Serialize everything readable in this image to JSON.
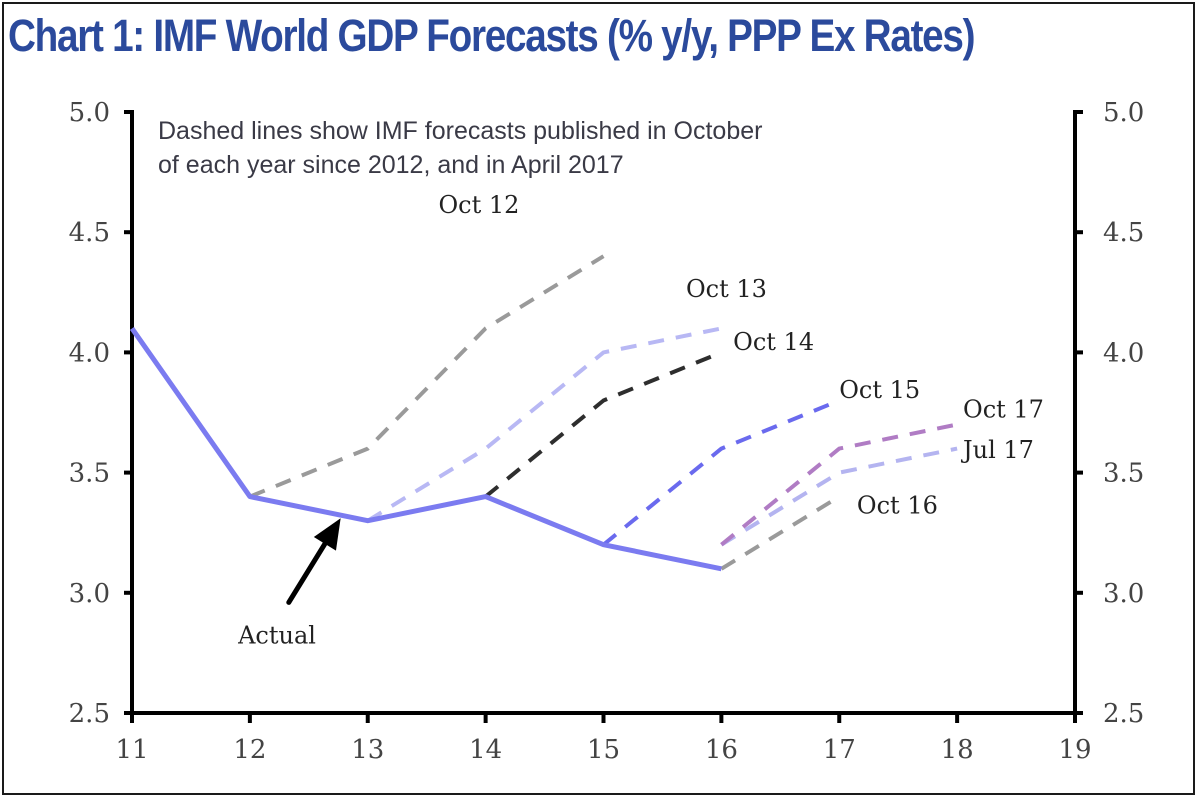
{
  "chart_data": {
    "type": "line",
    "title": "Chart 1: IMF World GDP Forecasts (% y/y, PPP Ex Rates)",
    "note_lines": [
      "Dashed lines show IMF forecasts published in October",
      "of each year since 2012, and in April 2017"
    ],
    "xlabel": "",
    "ylabel": "",
    "xlim": [
      11,
      19
    ],
    "ylim": [
      2.5,
      5.0
    ],
    "x_ticks": [
      "11",
      "12",
      "13",
      "14",
      "15",
      "16",
      "17",
      "18",
      "19"
    ],
    "y_ticks_left": [
      "2.5",
      "3.0",
      "3.5",
      "4.0",
      "4.5",
      "5.0"
    ],
    "y_ticks_right": [
      "2.5",
      "3.0",
      "3.5",
      "4.0",
      "4.5",
      "5.0"
    ],
    "grid": false,
    "series": [
      {
        "name": "Actual",
        "style": "solid",
        "color": "#7b7bf0",
        "x": [
          11,
          12,
          13,
          14,
          15,
          16
        ],
        "y": [
          4.1,
          3.4,
          3.3,
          3.4,
          3.2,
          3.1
        ]
      },
      {
        "name": "Oct 12",
        "style": "dashed",
        "color": "#9a9a9a",
        "x": [
          12,
          13,
          14,
          15
        ],
        "y": [
          3.4,
          3.6,
          4.1,
          4.4
        ]
      },
      {
        "name": "Oct 13",
        "style": "dashed",
        "color": "#b8b8f4",
        "x": [
          13,
          14,
          15,
          16
        ],
        "y": [
          3.3,
          3.6,
          4.0,
          4.1
        ]
      },
      {
        "name": "Oct 14",
        "style": "dashed",
        "color": "#2e2e2e",
        "x": [
          14,
          15,
          16
        ],
        "y": [
          3.4,
          3.8,
          4.0
        ]
      },
      {
        "name": "Oct 15",
        "style": "dashed",
        "color": "#6a6aee",
        "x": [
          15,
          16,
          17
        ],
        "y": [
          3.2,
          3.6,
          3.8
        ]
      },
      {
        "name": "Oct 16",
        "style": "dashed",
        "color": "#9a9a9a",
        "x": [
          16,
          17
        ],
        "y": [
          3.1,
          3.4
        ]
      },
      {
        "name": "Jul 17",
        "style": "dashed",
        "color": "#b4b4f0",
        "x": [
          16,
          17,
          18
        ],
        "y": [
          3.2,
          3.5,
          3.6
        ]
      },
      {
        "name": "Oct 17",
        "style": "dashed",
        "color": "#b07cc4",
        "x": [
          16,
          17,
          18
        ],
        "y": [
          3.2,
          3.6,
          3.7
        ]
      }
    ],
    "annotations": [
      {
        "text": "Oct 12",
        "anchor_x": 13.6,
        "anchor_y": 4.58
      },
      {
        "text": "Oct 13",
        "anchor_x": 15.7,
        "anchor_y": 4.23
      },
      {
        "text": "Oct 14",
        "anchor_x": 16.1,
        "anchor_y": 4.01
      },
      {
        "text": "Oct 15",
        "anchor_x": 17.0,
        "anchor_y": 3.81
      },
      {
        "text": "Oct 17",
        "anchor_x": 18.05,
        "anchor_y": 3.73
      },
      {
        "text": "Jul 17",
        "anchor_x": 18.05,
        "anchor_y": 3.56
      },
      {
        "text": "Oct 16",
        "anchor_x": 17.15,
        "anchor_y": 3.33
      },
      {
        "text": "Actual",
        "anchor_x": 11.9,
        "anchor_y": 2.79,
        "arrow_from": [
          12.33,
          2.96
        ],
        "arrow_to": [
          12.77,
          3.31
        ]
      }
    ]
  }
}
